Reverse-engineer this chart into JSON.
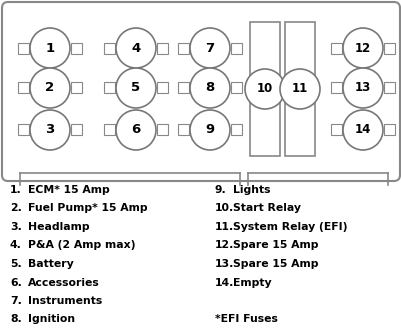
{
  "background": "#ffffff",
  "box_edge": "#888888",
  "legend_left": [
    [
      "1.",
      "ECM* 15 Amp"
    ],
    [
      "2.",
      "Fuel Pump* 15 Amp"
    ],
    [
      "3.",
      "Headlamp"
    ],
    [
      "4.",
      "P&A (2 Amp max)"
    ],
    [
      "5.",
      "Battery"
    ],
    [
      "6.",
      "Accessories"
    ],
    [
      "7.",
      "Instruments"
    ],
    [
      "8.",
      "Ignition"
    ]
  ],
  "legend_right": [
    [
      "9.",
      "Lights"
    ],
    [
      "10.",
      "Start Relay"
    ],
    [
      "11.",
      "System Relay (EFI)"
    ],
    [
      "12.",
      "Spare 15 Amp"
    ],
    [
      "13.",
      "Spare 15 Amp"
    ],
    [
      "14.",
      "Empty"
    ],
    [
      "",
      ""
    ],
    [
      "*EFI Fuses",
      ""
    ]
  ],
  "fuse_nums_small": [
    1,
    2,
    3,
    4,
    5,
    6,
    7,
    8,
    9,
    12,
    13,
    14
  ],
  "relay_nums": [
    10,
    11
  ]
}
